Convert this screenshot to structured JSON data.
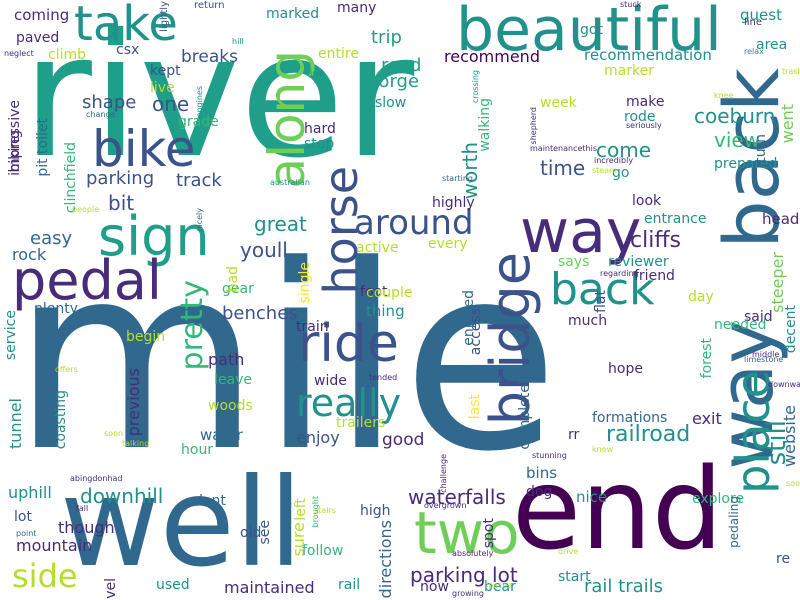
{
  "palette": {
    "dark_purple": "#440154",
    "indigo": "#472c7a",
    "blue": "#3b528b",
    "steel_blue": "#31688e",
    "teal": "#21918c",
    "sea_green": "#1f9e89",
    "green": "#35b779",
    "light_green": "#6ece58",
    "lime": "#b5de2b",
    "yellow": "#fde725"
  },
  "words": [
    {
      "text": "river",
      "color": "#1f9e89",
      "vertical": false
    },
    {
      "text": "mile",
      "color": "#31688e",
      "vertical": false
    },
    {
      "text": "well",
      "color": "#31688e",
      "vertical": false
    },
    {
      "text": "end",
      "color": "#440154",
      "vertical": false
    },
    {
      "text": "beautiful",
      "color": "#21918c",
      "vertical": false
    },
    {
      "text": "take",
      "color": "#21918c",
      "vertical": false
    },
    {
      "text": "way",
      "color": "#472c7a",
      "vertical": false
    },
    {
      "text": "back",
      "color": "#31688e",
      "vertical": true
    },
    {
      "text": "way",
      "color": "#31688e",
      "vertical": true
    },
    {
      "text": "sign",
      "color": "#1f9e89",
      "vertical": false
    },
    {
      "text": "bike",
      "color": "#3b528b",
      "vertical": false
    },
    {
      "text": "along",
      "color": "#6ece58",
      "vertical": true
    },
    {
      "text": "pedal",
      "color": "#472c7a",
      "vertical": false
    },
    {
      "text": "horse",
      "color": "#3b528b",
      "vertical": true
    },
    {
      "text": "ride",
      "color": "#3b528b",
      "vertical": false
    },
    {
      "text": "bridge",
      "color": "#3b528b",
      "vertical": true
    },
    {
      "text": "back",
      "color": "#21918c",
      "vertical": false
    },
    {
      "text": "around",
      "color": "#3b528b",
      "vertical": false
    },
    {
      "text": "really",
      "color": "#21918c",
      "vertical": false
    },
    {
      "text": "two",
      "color": "#6ece58",
      "vertical": false
    },
    {
      "text": "side",
      "color": "#b5de2b",
      "vertical": false
    },
    {
      "text": "place",
      "color": "#21918c",
      "vertical": true
    },
    {
      "text": "pretty",
      "color": "#35b779",
      "vertical": true
    },
    {
      "text": "still",
      "color": "#21918c",
      "vertical": true
    },
    {
      "text": "railroad",
      "color": "#21918c",
      "vertical": false
    },
    {
      "text": "parking lot",
      "color": "#472c7a",
      "vertical": false
    },
    {
      "text": "waterfalls",
      "color": "#472c7a",
      "vertical": false
    },
    {
      "text": "downhill",
      "color": "#21918c",
      "vertical": false
    },
    {
      "text": "mountain",
      "color": "#472c7a",
      "vertical": false
    },
    {
      "text": "maintained",
      "color": "#472c7a",
      "vertical": false
    },
    {
      "text": "rail trails",
      "color": "#21918c",
      "vertical": false
    },
    {
      "text": "cliffs",
      "color": "#472c7a",
      "vertical": false
    },
    {
      "text": "coeburn",
      "color": "#21918c",
      "vertical": false
    },
    {
      "text": "view",
      "color": "#35b779",
      "vertical": false
    },
    {
      "text": "worth",
      "color": "#21918c",
      "vertical": true
    },
    {
      "text": "time",
      "color": "#3b528b",
      "vertical": false
    },
    {
      "text": "come",
      "color": "#21918c",
      "vertical": false
    },
    {
      "text": "great",
      "color": "#21918c",
      "vertical": false
    },
    {
      "text": "youll",
      "color": "#3b528b",
      "vertical": false
    },
    {
      "text": "easy",
      "color": "#31688e",
      "vertical": false
    },
    {
      "text": "rock",
      "color": "#31688e",
      "vertical": false
    },
    {
      "text": "bit",
      "color": "#3b528b",
      "vertical": false
    },
    {
      "text": "one",
      "color": "#3b528b",
      "vertical": false
    },
    {
      "text": "shape",
      "color": "#3b528b",
      "vertical": false
    },
    {
      "text": "parking",
      "color": "#3b528b",
      "vertical": false
    },
    {
      "text": "track",
      "color": "#3b528b",
      "vertical": false
    },
    {
      "text": "breaks",
      "color": "#3b528b",
      "vertical": false
    },
    {
      "text": "trip",
      "color": "#1f9e89",
      "vertical": false
    },
    {
      "text": "road",
      "color": "#1f9e89",
      "vertical": false
    },
    {
      "text": "gorge",
      "color": "#1f9e89",
      "vertical": false
    },
    {
      "text": "recommend",
      "color": "#440154",
      "vertical": false
    },
    {
      "text": "recommendation",
      "color": "#21918c",
      "vertical": false
    },
    {
      "text": "marked",
      "color": "#21918c",
      "vertical": false
    },
    {
      "text": "many",
      "color": "#472c7a",
      "vertical": false
    },
    {
      "text": "coming",
      "color": "#472c7a",
      "vertical": false
    },
    {
      "text": "paved",
      "color": "#472c7a",
      "vertical": false
    },
    {
      "text": "climb",
      "color": "#b5de2b",
      "vertical": false
    },
    {
      "text": "csx",
      "color": "#3b528b",
      "vertical": false
    },
    {
      "text": "entire",
      "color": "#b5de2b",
      "vertical": false
    },
    {
      "text": "got",
      "color": "#21918c",
      "vertical": false
    },
    {
      "text": "guest",
      "color": "#21918c",
      "vertical": false
    },
    {
      "text": "area",
      "color": "#21918c",
      "vertical": false
    },
    {
      "text": "marker",
      "color": "#b5de2b",
      "vertical": false
    },
    {
      "text": "kept",
      "color": "#3b528b",
      "vertical": false
    },
    {
      "text": "live",
      "color": "#b5de2b",
      "vertical": false
    },
    {
      "text": "grade",
      "color": "#35b779",
      "vertical": false
    },
    {
      "text": "hard",
      "color": "#472c7a",
      "vertical": false
    },
    {
      "text": "stop",
      "color": "#21918c",
      "vertical": false
    },
    {
      "text": "slow",
      "color": "#21918c",
      "vertical": false
    },
    {
      "text": "week",
      "color": "#b5de2b",
      "vertical": false
    },
    {
      "text": "make",
      "color": "#472c7a",
      "vertical": false
    },
    {
      "text": "rode",
      "color": "#21918c",
      "vertical": false
    },
    {
      "text": "walking",
      "color": "#35b779",
      "vertical": true
    },
    {
      "text": "prepared",
      "color": "#21918c",
      "vertical": false
    },
    {
      "text": "go",
      "color": "#21918c",
      "vertical": false
    },
    {
      "text": "went",
      "color": "#6ece58",
      "vertical": true
    },
    {
      "text": "turn",
      "color": "#31688e",
      "vertical": true
    },
    {
      "text": "highly",
      "color": "#472c7a",
      "vertical": false
    },
    {
      "text": "look",
      "color": "#472c7a",
      "vertical": false
    },
    {
      "text": "entrance",
      "color": "#21918c",
      "vertical": false
    },
    {
      "text": "head",
      "color": "#472c7a",
      "vertical": false
    },
    {
      "text": "active",
      "color": "#b5de2b",
      "vertical": false
    },
    {
      "text": "every",
      "color": "#b5de2b",
      "vertical": false
    },
    {
      "text": "foot",
      "color": "#472c7a",
      "vertical": false
    },
    {
      "text": "says",
      "color": "#6ece58",
      "vertical": false
    },
    {
      "text": "reviewer",
      "color": "#21918c",
      "vertical": false
    },
    {
      "text": "friend",
      "color": "#472c7a",
      "vertical": false
    },
    {
      "text": "steeper",
      "color": "#6ece58",
      "vertical": true
    },
    {
      "text": "day",
      "color": "#b5de2b",
      "vertical": false
    },
    {
      "text": "flat",
      "color": "#3b528b",
      "vertical": true
    },
    {
      "text": "couple",
      "color": "#b5de2b",
      "vertical": false
    },
    {
      "text": "thing",
      "color": "#21918c",
      "vertical": false
    },
    {
      "text": "enjoyed",
      "color": "#31688e",
      "vertical": true
    },
    {
      "text": "access",
      "color": "#3b528b",
      "vertical": true
    },
    {
      "text": "much",
      "color": "#472c7a",
      "vertical": false
    },
    {
      "text": "said",
      "color": "#472c7a",
      "vertical": false
    },
    {
      "text": "needed",
      "color": "#35b779",
      "vertical": false
    },
    {
      "text": "decent",
      "color": "#21918c",
      "vertical": true
    },
    {
      "text": "benches",
      "color": "#3b528b",
      "vertical": false
    },
    {
      "text": "train",
      "color": "#472c7a",
      "vertical": false
    },
    {
      "text": "single",
      "color": "#fde725",
      "vertical": true
    },
    {
      "text": "plenty",
      "color": "#31688e",
      "vertical": false
    },
    {
      "text": "begin",
      "color": "#b5de2b",
      "vertical": false
    },
    {
      "text": "gear",
      "color": "#35b779",
      "vertical": false
    },
    {
      "text": "service",
      "color": "#21918c",
      "vertical": true
    },
    {
      "text": "path",
      "color": "#472c7a",
      "vertical": false
    },
    {
      "text": "leave",
      "color": "#35b779",
      "vertical": false
    },
    {
      "text": "wide",
      "color": "#472c7a",
      "vertical": false
    },
    {
      "text": "woods",
      "color": "#b5de2b",
      "vertical": false
    },
    {
      "text": "water",
      "color": "#31688e",
      "vertical": false
    },
    {
      "text": "hour",
      "color": "#35b779",
      "vertical": false
    },
    {
      "text": "enjoy",
      "color": "#3b528b",
      "vertical": false
    },
    {
      "text": "trailers",
      "color": "#b5de2b",
      "vertical": false
    },
    {
      "text": "good",
      "color": "#472c7a",
      "vertical": false
    },
    {
      "text": "last",
      "color": "#fde725",
      "vertical": true
    },
    {
      "text": "completely",
      "color": "#31688e",
      "vertical": true
    },
    {
      "text": "hope",
      "color": "#472c7a",
      "vertical": false
    },
    {
      "text": "forest",
      "color": "#35b779",
      "vertical": true
    },
    {
      "text": "exit",
      "color": "#472c7a",
      "vertical": false
    },
    {
      "text": "formations",
      "color": "#31688e",
      "vertical": false
    },
    {
      "text": "website",
      "color": "#31688e",
      "vertical": true
    },
    {
      "text": "rr",
      "color": "#472c7a",
      "vertical": false
    },
    {
      "text": "bins",
      "color": "#31688e",
      "vertical": false
    },
    {
      "text": "dog",
      "color": "#472c7a",
      "vertical": false
    },
    {
      "text": "tunnel",
      "color": "#21918c",
      "vertical": true
    },
    {
      "text": "previous",
      "color": "#472c7a",
      "vertical": true
    },
    {
      "text": "coasting",
      "color": "#21918c",
      "vertical": true
    },
    {
      "text": "uphill",
      "color": "#21918c",
      "vertical": false
    },
    {
      "text": "dont",
      "color": "#31688e",
      "vertical": false
    },
    {
      "text": "nice",
      "color": "#21918c",
      "vertical": false
    },
    {
      "text": "explore",
      "color": "#35b779",
      "vertical": false
    },
    {
      "text": "though",
      "color": "#472c7a",
      "vertical": false
    },
    {
      "text": "lot",
      "color": "#3b528b",
      "vertical": false
    },
    {
      "text": "old",
      "color": "#3b528b",
      "vertical": false
    },
    {
      "text": "see",
      "color": "#3b528b",
      "vertical": true
    },
    {
      "text": "left",
      "color": "#b5de2b",
      "vertical": true
    },
    {
      "text": "sure",
      "color": "#b5de2b",
      "vertical": true
    },
    {
      "text": "follow",
      "color": "#35b779",
      "vertical": false
    },
    {
      "text": "high",
      "color": "#3b528b",
      "vertical": false
    },
    {
      "text": "directions",
      "color": "#31688e",
      "vertical": true
    },
    {
      "text": "spot",
      "color": "#472c7a",
      "vertical": true
    },
    {
      "text": "gravel",
      "color": "#472c7a",
      "vertical": true
    },
    {
      "text": "used",
      "color": "#21918c",
      "vertical": false
    },
    {
      "text": "rail",
      "color": "#21918c",
      "vertical": false
    },
    {
      "text": "now",
      "color": "#472c7a",
      "vertical": false
    },
    {
      "text": "bear",
      "color": "#21918c",
      "vertical": false
    },
    {
      "text": "start",
      "color": "#21918c",
      "vertical": false
    },
    {
      "text": "re",
      "color": "#3b528b",
      "vertical": false
    },
    {
      "text": "pedaling",
      "color": "#31688e",
      "vertical": true
    },
    {
      "text": "impressive",
      "color": "#472c7a",
      "vertical": true
    },
    {
      "text": "biking",
      "color": "#472c7a",
      "vertical": true
    },
    {
      "text": "pit toilet",
      "color": "#31688e",
      "vertical": true
    },
    {
      "text": "clinchfield",
      "color": "#35b779",
      "vertical": true
    },
    {
      "text": "lightly",
      "color": "#3b528b",
      "vertical": true
    },
    {
      "text": "return",
      "color": "#3b528b",
      "vertical": false
    },
    {
      "text": "hill",
      "color": "#21918c",
      "vertical": false
    },
    {
      "text": "line",
      "color": "#472c7a",
      "vertical": false
    },
    {
      "text": "relax",
      "color": "#21918c",
      "vertical": false
    },
    {
      "text": "stuck",
      "color": "#472c7a",
      "vertical": false
    },
    {
      "text": "trash",
      "color": "#b5de2b",
      "vertical": false
    },
    {
      "text": "neglect",
      "color": "#472c7a",
      "vertical": false
    },
    {
      "text": "engines",
      "color": "#21918c",
      "vertical": true
    },
    {
      "text": "crossing",
      "color": "#21918c",
      "vertical": true
    },
    {
      "text": "isnt",
      "color": "#21918c",
      "vertical": false
    },
    {
      "text": "knee",
      "color": "#b5de2b",
      "vertical": false
    },
    {
      "text": "change",
      "color": "#31688e",
      "vertical": false
    },
    {
      "text": "shepherd",
      "color": "#472c7a",
      "vertical": true
    },
    {
      "text": "seriously",
      "color": "#472c7a",
      "vertical": false
    },
    {
      "text": "maintenancethis",
      "color": "#472c7a",
      "vertical": false
    },
    {
      "text": "incredibly",
      "color": "#472c7a",
      "vertical": false
    },
    {
      "text": "steam",
      "color": "#b5de2b",
      "vertical": false
    },
    {
      "text": "starting",
      "color": "#31688e",
      "vertical": false
    },
    {
      "text": "australian",
      "color": "#21918c",
      "vertical": false
    },
    {
      "text": "people",
      "color": "#b5de2b",
      "vertical": false
    },
    {
      "text": "nicely",
      "color": "#31688e",
      "vertical": true
    },
    {
      "text": "regarding",
      "color": "#472c7a",
      "vertical": false
    },
    {
      "text": "middle",
      "color": "#472c7a",
      "vertical": false
    },
    {
      "text": "limestone",
      "color": "#31688e",
      "vertical": false
    },
    {
      "text": "downward",
      "color": "#472c7a",
      "vertical": false
    },
    {
      "text": "offers",
      "color": "#b5de2b",
      "vertical": false
    },
    {
      "text": "tended",
      "color": "#472c7a",
      "vertical": false
    },
    {
      "text": "soon",
      "color": "#b5de2b",
      "vertical": false
    },
    {
      "text": "know",
      "color": "#b5de2b",
      "vertical": false
    },
    {
      "text": "stunning",
      "color": "#472c7a",
      "vertical": false
    },
    {
      "text": "challenge",
      "color": "#472c7a",
      "vertical": true
    },
    {
      "text": "talking",
      "color": "#b5de2b",
      "vertical": false
    },
    {
      "text": "abingdonhad",
      "color": "#472c7a",
      "vertical": false
    },
    {
      "text": "fall",
      "color": "#472c7a",
      "vertical": false
    },
    {
      "text": "brought",
      "color": "#35b779",
      "vertical": true
    },
    {
      "text": "stairs",
      "color": "#b5de2b",
      "vertical": false
    },
    {
      "text": "overgrown",
      "color": "#472c7a",
      "vertical": false
    },
    {
      "text": "point",
      "color": "#31688e",
      "vertical": false
    },
    {
      "text": "drive",
      "color": "#b5de2b",
      "vertical": false
    },
    {
      "text": "absolutely",
      "color": "#472c7a",
      "vertical": false
    },
    {
      "text": "soot",
      "color": "#b5de2b",
      "vertical": false
    },
    {
      "text": "spaces",
      "color": "#b5de2b",
      "vertical": false
    },
    {
      "text": "growing",
      "color": "#472c7a",
      "vertical": false
    },
    {
      "text": "bad",
      "color": "#b5de2b",
      "vertical": true
    },
    {
      "text": "grass",
      "color": "#472c7a",
      "vertical": false
    },
    {
      "text": "tons",
      "color": "#472c7a",
      "vertical": false
    },
    {
      "text": "t",
      "color": "#472c7a",
      "vertical": false
    }
  ]
}
